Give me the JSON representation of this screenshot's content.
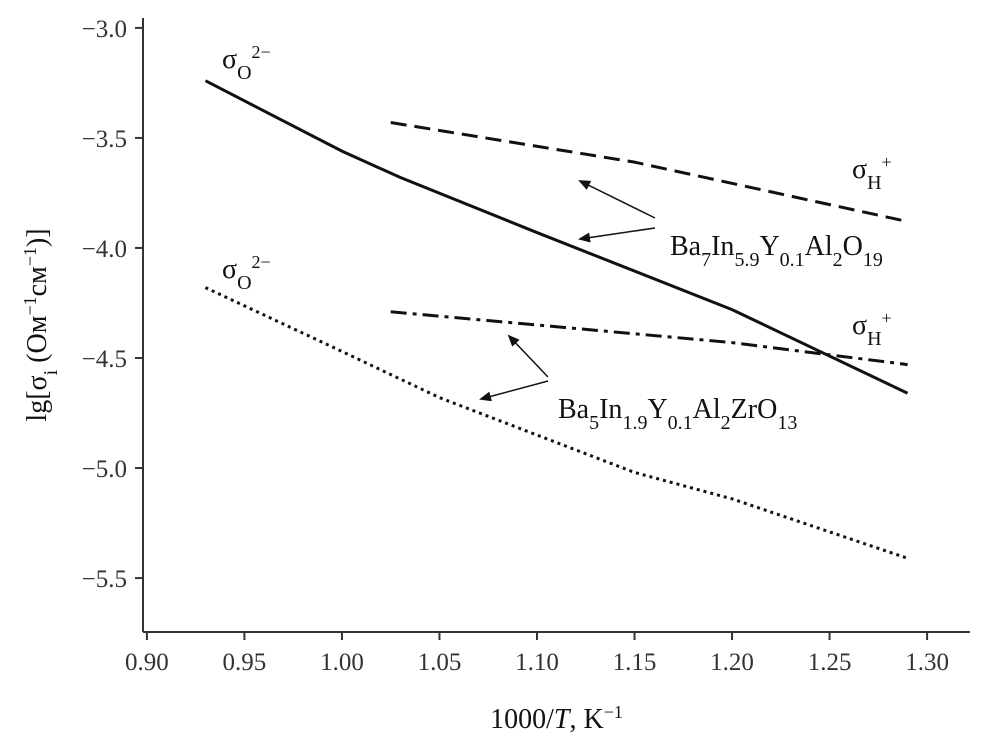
{
  "chart_data": {
    "type": "line",
    "x_label": [
      {
        "text": "1000/"
      },
      {
        "it": "T"
      },
      {
        "text": ", K"
      },
      {
        "sup": "−1"
      }
    ],
    "y_label": [
      {
        "text": "lg[σ"
      },
      {
        "sub": "i"
      },
      {
        "text": " (Ом"
      },
      {
        "sup": "−1"
      },
      {
        "text": "см"
      },
      {
        "sup": "−1"
      },
      {
        "text": ")]"
      }
    ],
    "xlim": [
      0.898,
      1.322
    ],
    "ylim": [
      -5.745,
      -2.955
    ],
    "xticks": [
      {
        "value": 0.9,
        "label": "0.90"
      },
      0.95,
      {
        "value": 1.0,
        "label": "1.00"
      },
      1.05,
      {
        "value": 1.1,
        "label": "1.10"
      },
      1.15,
      {
        "value": 1.2,
        "label": "1.20"
      },
      1.25,
      {
        "value": 1.3,
        "label": "1.30"
      }
    ],
    "yticks": [
      {
        "value": -3,
        "label": "−3.0"
      },
      {
        "value": -3.5,
        "label": "−3.5"
      },
      {
        "value": -4,
        "label": "−4.0"
      },
      {
        "value": -4.5,
        "label": "−4.5"
      },
      {
        "value": -5,
        "label": "−5.0"
      },
      {
        "value": -5.5,
        "label": "−5.5"
      }
    ],
    "series": [
      {
        "color": "#111111",
        "style": "solid",
        "x": [
          0.93,
          1.0,
          1.03,
          1.1,
          1.2,
          1.29
        ],
        "values": [
          -3.24,
          -3.56,
          -3.68,
          -3.93,
          -4.28,
          -4.66
        ]
      },
      {
        "color": "#111111",
        "style": "dashed",
        "x": [
          1.025,
          1.15,
          1.29
        ],
        "values": [
          -3.43,
          -3.61,
          -3.88
        ]
      },
      {
        "color": "#111111",
        "style": "dashdot",
        "x": [
          1.025,
          1.1,
          1.2,
          1.29
        ],
        "values": [
          -4.29,
          -4.35,
          -4.43,
          -4.53
        ]
      },
      {
        "color": "#111111",
        "style": "dotted",
        "x": [
          0.93,
          1.0,
          1.05,
          1.1,
          1.15,
          1.2,
          1.29
        ],
        "values": [
          -4.18,
          -4.47,
          -4.68,
          -4.85,
          -5.02,
          -5.14,
          -5.41
        ]
      }
    ],
    "annotations": [
      {
        "parts": [
          {
            "text": "σ"
          },
          {
            "sub": "O"
          },
          {
            "sup": "2−"
          }
        ]
      },
      {
        "parts": [
          {
            "text": "σ"
          },
          {
            "sub": "H"
          },
          {
            "sup": "+"
          }
        ]
      },
      {
        "parts": [
          {
            "text": "Ba"
          },
          {
            "sub": "7"
          },
          {
            "text": "In"
          },
          {
            "sub": "5.9"
          },
          {
            "text": "Y"
          },
          {
            "sub": "0.1"
          },
          {
            "text": "Al"
          },
          {
            "sub": "2"
          },
          {
            "text": "O"
          },
          {
            "sub": "19"
          }
        ]
      },
      {
        "parts": [
          {
            "text": "σ"
          },
          {
            "sub": "O"
          },
          {
            "sup": "2−"
          }
        ]
      },
      {
        "parts": [
          {
            "text": "σ"
          },
          {
            "sub": "H"
          },
          {
            "sup": "+"
          }
        ]
      },
      {
        "parts": [
          {
            "text": "Ba"
          },
          {
            "sub": "5"
          },
          {
            "text": "In"
          },
          {
            "sub": "1.9"
          },
          {
            "text": "Y"
          },
          {
            "sub": "0.1"
          },
          {
            "text": "Al"
          },
          {
            "sub": "2"
          },
          {
            "text": "ZrO"
          },
          {
            "sub": "13"
          }
        ]
      }
    ]
  }
}
